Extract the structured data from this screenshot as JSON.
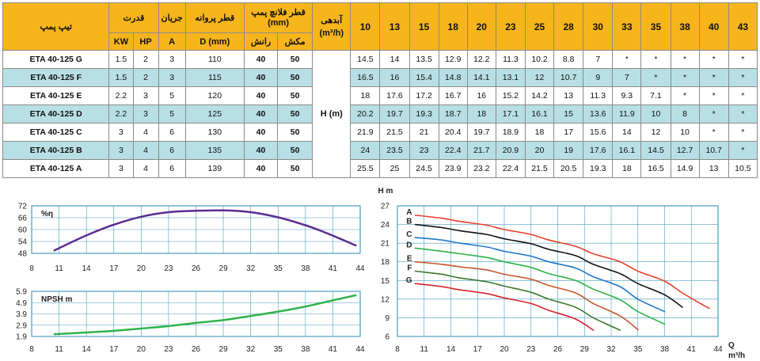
{
  "table": {
    "header": {
      "model": "تیپ پمپ",
      "power": "قدرت",
      "current": "جریان",
      "impeller": "قطر پروانه",
      "flange": "قطر فلانچ پمپ (mm)",
      "flow": "آبدهی",
      "flow_unit": "(m³/h)",
      "kw": "KW",
      "hp": "HP",
      "amp": "A",
      "dmm": "D (mm)",
      "discharge": "رانش",
      "suction": "مکش",
      "q_values": [
        "10",
        "13",
        "15",
        "18",
        "20",
        "23",
        "25",
        "28",
        "30",
        "33",
        "35",
        "38",
        "40",
        "43"
      ]
    },
    "head_label": "H (m)",
    "rows": [
      {
        "model": "ETA 40-125 G",
        "kw": "1.5",
        "hp": "2",
        "a": "3",
        "d": "110",
        "dis": "40",
        "suc": "50",
        "h": [
          "14.5",
          "14",
          "13.5",
          "12.9",
          "12.2",
          "11.3",
          "10.2",
          "8.8",
          "7",
          "*",
          "*",
          "*",
          "*",
          "*"
        ]
      },
      {
        "model": "ETA 40-125 F",
        "kw": "1.5",
        "hp": "2",
        "a": "3",
        "d": "115",
        "dis": "40",
        "suc": "50",
        "h": [
          "16.5",
          "16",
          "15.4",
          "14.8",
          "14.1",
          "13.1",
          "12",
          "10.7",
          "9",
          "7",
          "*",
          "*",
          "*",
          "*"
        ]
      },
      {
        "model": "ETA 40-125 E",
        "kw": "2.2",
        "hp": "3",
        "a": "5",
        "d": "120",
        "dis": "40",
        "suc": "50",
        "h": [
          "18",
          "17.6",
          "17.2",
          "16.7",
          "16",
          "15.2",
          "14.2",
          "13",
          "11.3",
          "9.3",
          "7.1",
          "*",
          "*",
          "*"
        ]
      },
      {
        "model": "ETA 40-125 D",
        "kw": "2.2",
        "hp": "3",
        "a": "5",
        "d": "125",
        "dis": "40",
        "suc": "50",
        "h": [
          "20.2",
          "19.7",
          "19.3",
          "18.7",
          "18",
          "17.1",
          "16.1",
          "15",
          "13.6",
          "11.9",
          "10",
          "8",
          "*",
          "*"
        ]
      },
      {
        "model": "ETA 40-125 C",
        "kw": "3",
        "hp": "4",
        "a": "6",
        "d": "130",
        "dis": "40",
        "suc": "50",
        "h": [
          "21.9",
          "21.5",
          "21",
          "20.4",
          "19.7",
          "18.9",
          "18",
          "17",
          "15.6",
          "14",
          "12",
          "10",
          "*",
          "*"
        ]
      },
      {
        "model": "ETA 40-125 B",
        "kw": "3",
        "hp": "4",
        "a": "6",
        "d": "135",
        "dis": "40",
        "suc": "50",
        "h": [
          "24",
          "23.5",
          "23",
          "22.4",
          "21.7",
          "20.9",
          "20",
          "19",
          "17.6",
          "16.1",
          "14.5",
          "12.7",
          "10.7",
          "*"
        ]
      },
      {
        "model": "ETA 40-125 A",
        "kw": "3",
        "hp": "4",
        "a": "6",
        "d": "139",
        "dis": "40",
        "suc": "50",
        "h": [
          "25.5",
          "25",
          "24.5",
          "23.9",
          "23.2",
          "22.4",
          "21.5",
          "20.5",
          "19.3",
          "18",
          "16.5",
          "14.9",
          "13",
          "10.5"
        ]
      }
    ]
  },
  "chart_data": [
    {
      "type": "line",
      "title": "%η",
      "xlim": [
        8,
        44
      ],
      "xticks": [
        "8",
        "11",
        "14",
        "17",
        "20",
        "23",
        "26",
        "29",
        "32",
        "35",
        "38",
        "41",
        "44"
      ],
      "ylim": [
        48,
        72
      ],
      "yticks": [
        "48",
        "54",
        "60",
        "66",
        "72"
      ],
      "series": [
        {
          "color": "#5b2c91",
          "x": [
            10.5,
            13,
            15,
            17,
            20,
            23,
            26,
            29,
            32,
            35,
            38,
            40,
            42,
            43.5
          ],
          "y": [
            49.5,
            55,
            59,
            62.5,
            66.5,
            68.8,
            69.5,
            69.7,
            68.8,
            66.2,
            62.2,
            58.8,
            55,
            52
          ]
        }
      ]
    },
    {
      "type": "line",
      "title": "NPSH m",
      "xlim": [
        8,
        44
      ],
      "xticks": [
        "8",
        "11",
        "14",
        "17",
        "20",
        "23",
        "26",
        "29",
        "32",
        "35",
        "38",
        "41",
        "44"
      ],
      "ylim": [
        1.9,
        5.9
      ],
      "yticks": [
        "1.9",
        "2.9",
        "3.9",
        "4.9",
        "5.9"
      ],
      "series": [
        {
          "color": "#2db34a",
          "x": [
            10.5,
            14,
            17,
            20,
            23,
            26,
            29,
            32,
            35,
            38,
            41,
            43.5
          ],
          "y": [
            2.1,
            2.25,
            2.4,
            2.6,
            2.82,
            3.1,
            3.35,
            3.72,
            4.1,
            4.55,
            5.1,
            5.55
          ]
        }
      ]
    },
    {
      "type": "line",
      "ylabel": "H m",
      "xlabel": "Q",
      "xunit": "m³/h",
      "xlim": [
        8,
        44
      ],
      "xticks": [
        "8",
        "11",
        "14",
        "17",
        "20",
        "23",
        "26",
        "29",
        "32",
        "35",
        "38",
        "41",
        "44"
      ],
      "ylim": [
        6,
        27
      ],
      "yticks": [
        "6",
        "9",
        "12",
        "15",
        "18",
        "21",
        "24",
        "27"
      ],
      "series": [
        {
          "name": "A",
          "color": "#e8402a",
          "x": [
            10,
            13,
            15,
            18,
            20,
            23,
            25,
            28,
            30,
            33,
            35,
            38,
            40,
            43
          ],
          "y": [
            25.5,
            25,
            24.5,
            23.9,
            23.2,
            22.4,
            21.5,
            20.5,
            19.3,
            18,
            16.5,
            14.9,
            13,
            10.5
          ]
        },
        {
          "name": "B",
          "color": "#111111",
          "x": [
            10,
            13,
            15,
            18,
            20,
            23,
            25,
            28,
            30,
            33,
            35,
            38,
            40
          ],
          "y": [
            24,
            23.5,
            23,
            22.4,
            21.7,
            20.9,
            20,
            19,
            17.6,
            16.1,
            14.5,
            12.7,
            10.7
          ]
        },
        {
          "name": "C",
          "color": "#1f78c8",
          "x": [
            10,
            13,
            15,
            18,
            20,
            23,
            25,
            28,
            30,
            33,
            35,
            38
          ],
          "y": [
            21.9,
            21.5,
            21,
            20.4,
            19.7,
            18.9,
            18,
            17,
            15.6,
            14,
            12,
            10
          ]
        },
        {
          "name": "D",
          "color": "#2db34a",
          "x": [
            10,
            13,
            15,
            18,
            20,
            23,
            25,
            28,
            30,
            33,
            35,
            38
          ],
          "y": [
            20.2,
            19.7,
            19.3,
            18.7,
            18,
            17.1,
            16.1,
            15,
            13.6,
            11.9,
            10,
            8
          ]
        },
        {
          "name": "E",
          "color": "#c8562a",
          "x": [
            10,
            13,
            15,
            18,
            20,
            23,
            25,
            28,
            30,
            33,
            35
          ],
          "y": [
            18,
            17.6,
            17.2,
            16.7,
            16,
            15.2,
            14.2,
            13,
            11.3,
            9.3,
            7.1
          ]
        },
        {
          "name": "F",
          "color": "#3c7a2c",
          "x": [
            10,
            13,
            15,
            18,
            20,
            23,
            25,
            28,
            30,
            33
          ],
          "y": [
            16.5,
            16,
            15.4,
            14.8,
            14.1,
            13.1,
            12,
            10.7,
            9,
            7
          ]
        },
        {
          "name": "G",
          "color": "#d8222a",
          "x": [
            10,
            13,
            15,
            18,
            20,
            23,
            25,
            28,
            30
          ],
          "y": [
            14.5,
            14,
            13.5,
            12.9,
            12.2,
            11.3,
            10.2,
            8.8,
            7
          ]
        }
      ]
    }
  ]
}
